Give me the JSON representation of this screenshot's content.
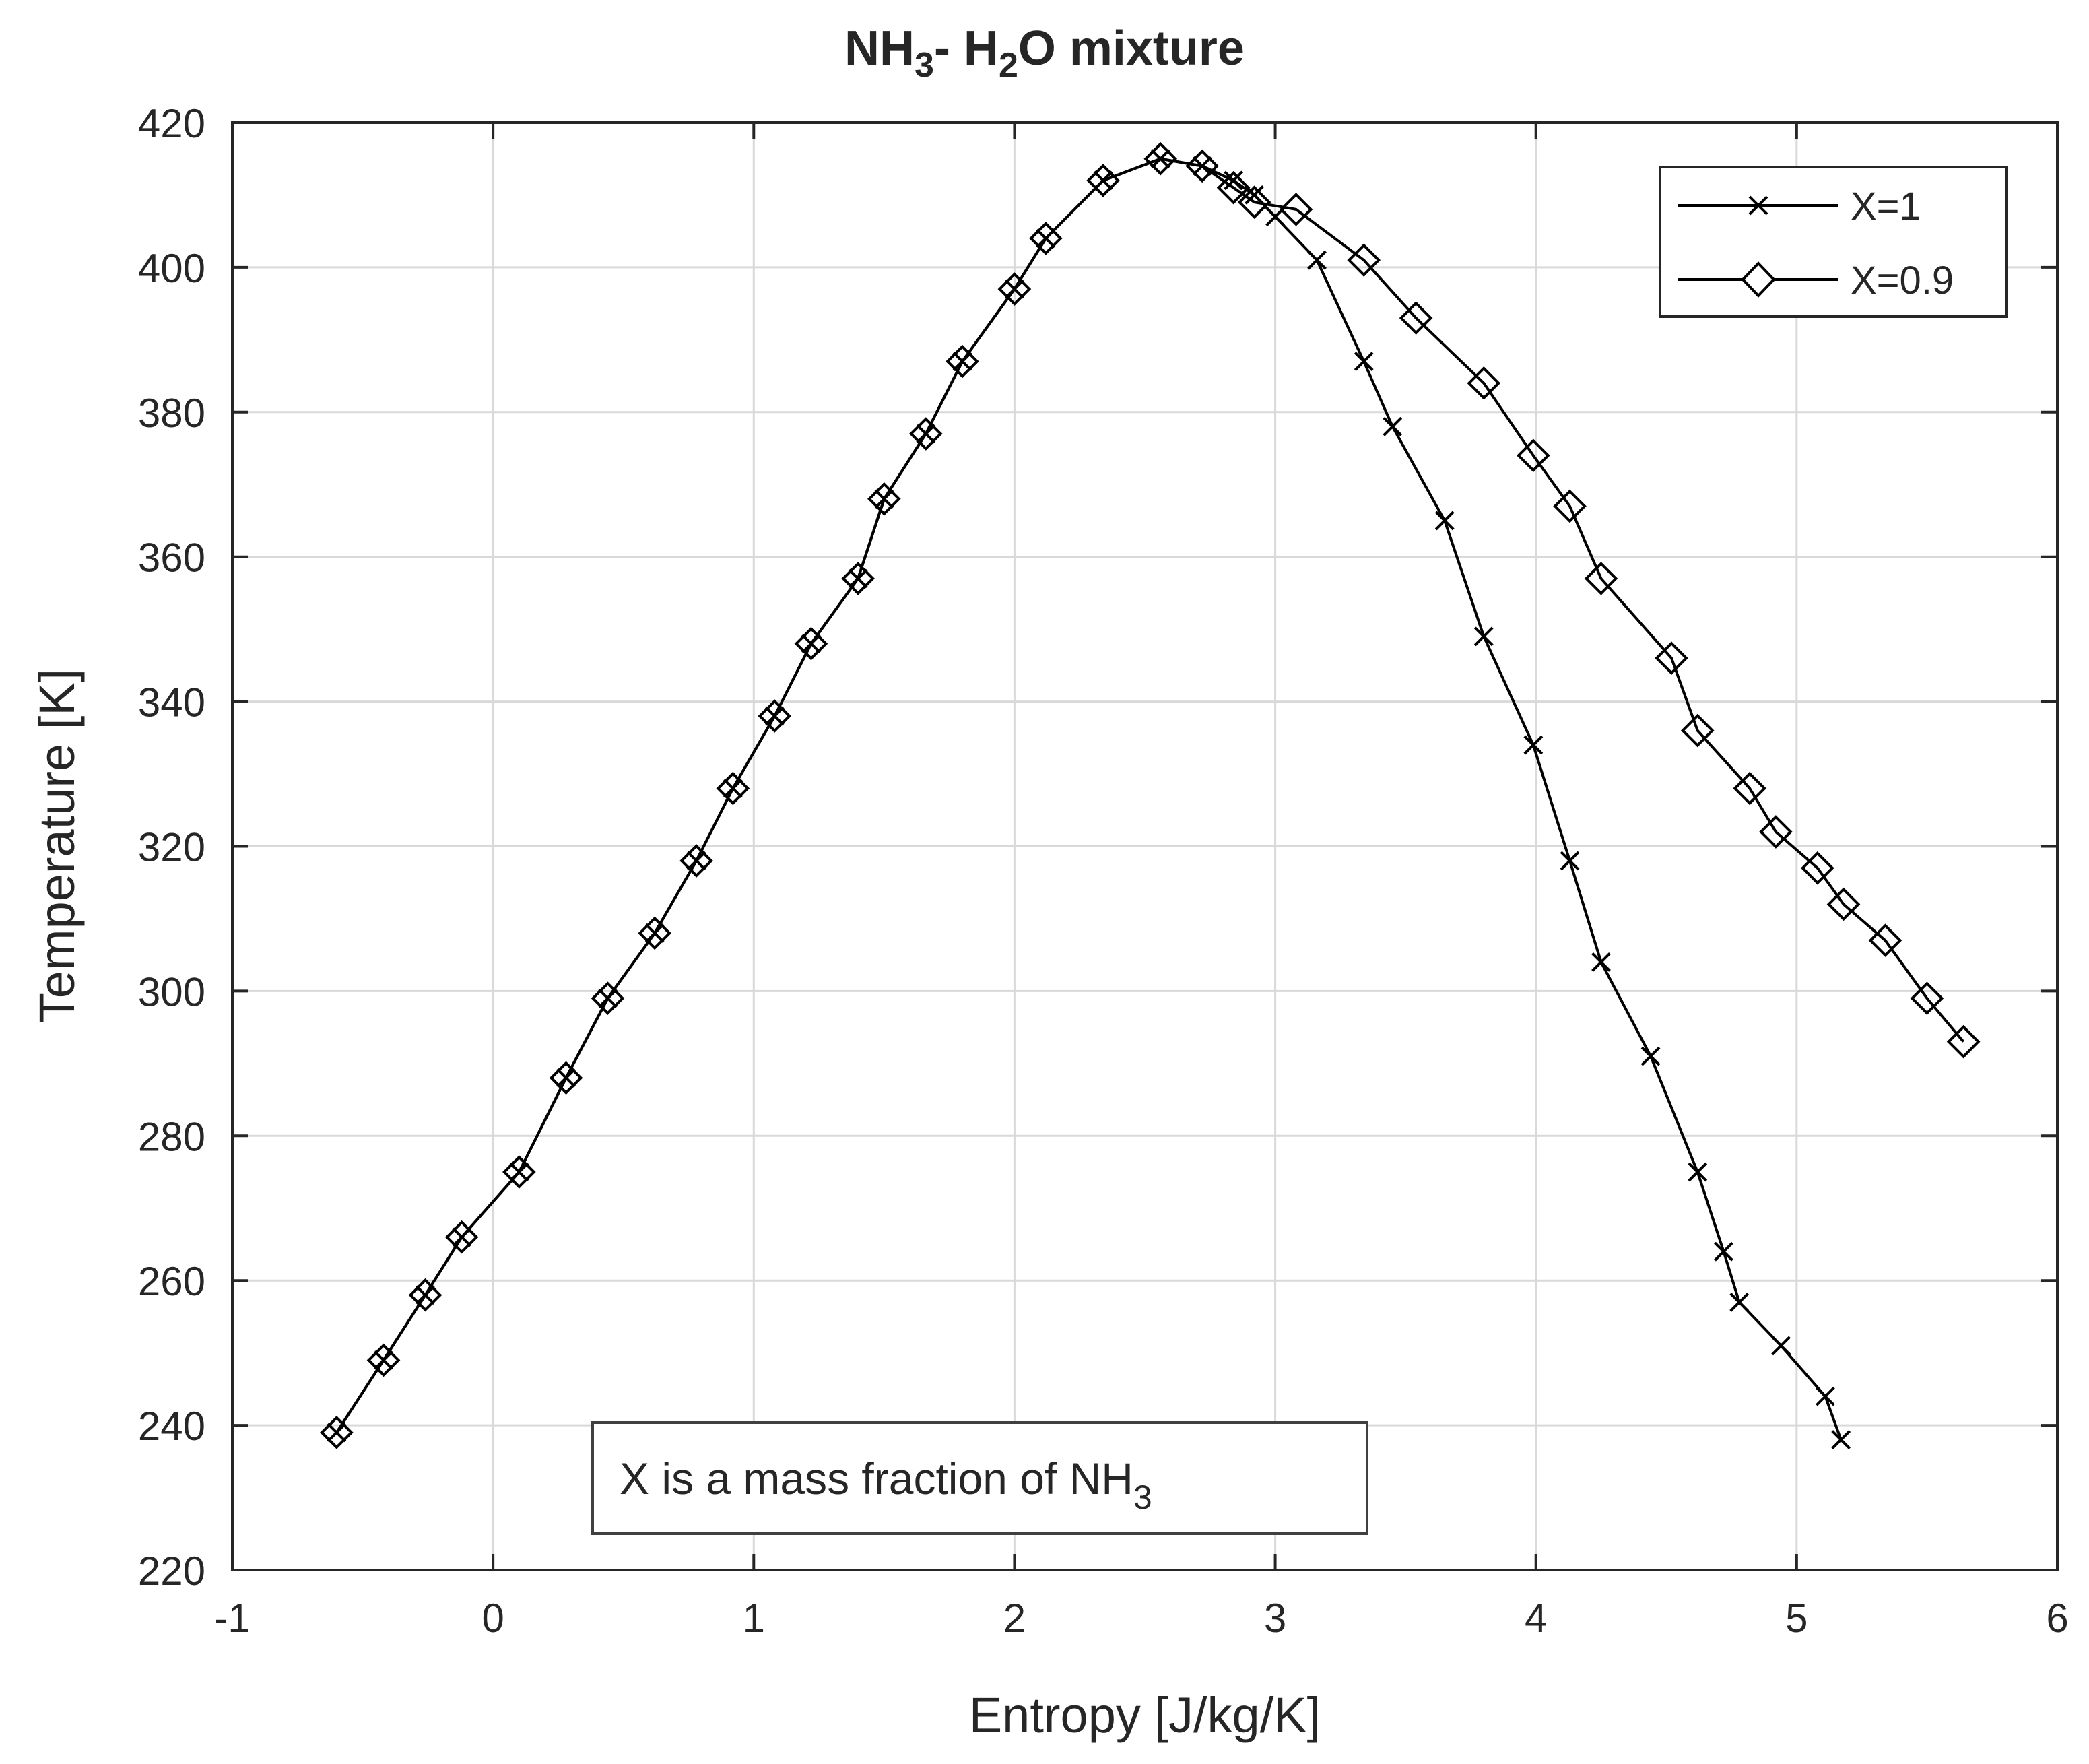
{
  "chart_data": {
    "type": "line",
    "title": {
      "base": "NH",
      "sub1": "3",
      "dash": "- H",
      "sub2": "2",
      "rest": "O mixture"
    },
    "xlabel": "Entropy [J/kg/K]",
    "ylabel": "Temperature [K]",
    "xlim": [
      -1,
      6
    ],
    "ylim": [
      220,
      420
    ],
    "xticks": [
      -1,
      0,
      1,
      2,
      3,
      4,
      5,
      6
    ],
    "yticks": [
      220,
      240,
      260,
      280,
      300,
      320,
      340,
      360,
      380,
      400,
      420
    ],
    "grid": true,
    "legend_position": "top-right",
    "annotation": {
      "text": "X is a mass fraction of NH",
      "sub": "3",
      "position": "bottom-center"
    },
    "series": [
      {
        "name": "X=1",
        "marker": "x",
        "x": [
          -0.6,
          -0.42,
          -0.26,
          -0.12,
          0.1,
          0.28,
          0.44,
          0.62,
          0.78,
          0.92,
          1.08,
          1.22,
          1.4,
          1.5,
          1.66,
          1.8,
          2.0,
          2.12,
          2.34,
          2.56,
          2.72,
          2.84,
          2.92,
          3.0,
          3.16,
          3.34,
          3.45,
          3.65,
          3.8,
          3.99,
          4.13,
          4.25,
          4.44,
          4.62,
          4.72,
          4.78,
          4.94,
          5.11,
          5.17
        ],
        "values": [
          239,
          249,
          258,
          266,
          275,
          288,
          299,
          308,
          318,
          328,
          338,
          348,
          357,
          368,
          377,
          387,
          397,
          404,
          412,
          415,
          414,
          412,
          410,
          407,
          401,
          387,
          378,
          365,
          349,
          334,
          318,
          304,
          291,
          275,
          264,
          257,
          251,
          244,
          238
        ]
      },
      {
        "name": "X=0.9",
        "marker": "diamond",
        "x": [
          -0.6,
          -0.42,
          -0.26,
          -0.12,
          0.1,
          0.28,
          0.44,
          0.62,
          0.78,
          0.92,
          1.08,
          1.22,
          1.4,
          1.5,
          1.66,
          1.8,
          2.0,
          2.12,
          2.34,
          2.56,
          2.72,
          2.84,
          2.92,
          3.08,
          3.34,
          3.54,
          3.8,
          3.99,
          4.13,
          4.25,
          4.52,
          4.62,
          4.82,
          4.92,
          5.08,
          5.18,
          5.34,
          5.5,
          5.64
        ],
        "values": [
          239,
          249,
          258,
          266,
          275,
          288,
          299,
          308,
          318,
          328,
          338,
          348,
          357,
          368,
          377,
          387,
          397,
          404,
          412,
          415,
          414,
          411,
          409,
          408,
          401,
          393,
          384,
          374,
          367,
          357,
          346,
          336,
          328,
          322,
          317,
          312,
          307,
          299,
          293
        ]
      }
    ]
  }
}
